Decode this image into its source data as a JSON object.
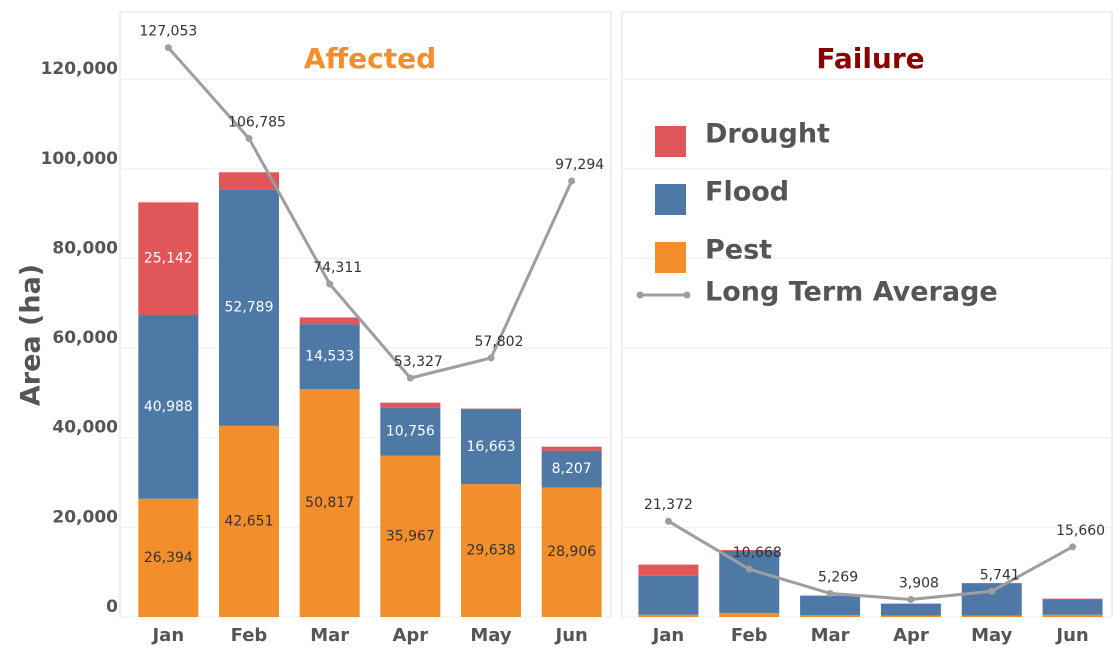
{
  "chart_data": [
    {
      "type": "stacked_bar_line",
      "title": "Affected",
      "title_color": "#f28e2b",
      "y_label": "Area (ha)",
      "categories": [
        "Jan",
        "Feb",
        "Mar",
        "Apr",
        "May",
        "Jun"
      ],
      "series": [
        {
          "name": "Pest",
          "color": "#f28e2b",
          "values": [
            26394,
            42651,
            50817,
            35967,
            29638,
            28906
          ],
          "value_labels": [
            "26,394",
            "42,651",
            "50,817",
            "35,967",
            "29,638",
            "28,906"
          ]
        },
        {
          "name": "Flood",
          "color": "#4e79a7",
          "values": [
            40988,
            52789,
            14533,
            10756,
            16663,
            8207
          ],
          "value_labels": [
            "40,988",
            "52,789",
            "14,533",
            "10,756",
            "16,663",
            "8,207"
          ]
        },
        {
          "name": "Drought",
          "color": "#e15759",
          "values": [
            25142,
            3800,
            1500,
            1100,
            200,
            900
          ],
          "value_labels": [
            "25,142",
            null,
            null,
            null,
            null,
            null
          ]
        }
      ],
      "line": {
        "name": "Long Term Average",
        "color": "#9e9e9e",
        "values": [
          127053,
          106785,
          74311,
          53327,
          57802,
          97294
        ],
        "value_labels": [
          "127,053",
          "106,785",
          "74,311",
          "53,327",
          "57,802",
          "97,294"
        ]
      },
      "ylim": [
        0,
        135000
      ],
      "yticks": [
        {
          "value": 0,
          "label": "0"
        },
        {
          "value": 20000,
          "label": "20,000"
        },
        {
          "value": 40000,
          "label": "40,000"
        },
        {
          "value": 60000,
          "label": "60,000"
        },
        {
          "value": 80000,
          "label": "80,000"
        },
        {
          "value": 100000,
          "label": "100,000"
        },
        {
          "value": 120000,
          "label": "120,000"
        }
      ],
      "grid": true
    },
    {
      "type": "stacked_bar_line",
      "title": "Failure",
      "title_color": "#8b0000",
      "categories": [
        "Jan",
        "Feb",
        "Mar",
        "Apr",
        "May",
        "Jun"
      ],
      "series": [
        {
          "name": "Pest",
          "color": "#f28e2b",
          "values": [
            500,
            900,
            400,
            300,
            300,
            500
          ]
        },
        {
          "name": "Flood",
          "color": "#4e79a7",
          "values": [
            8700,
            13850,
            4300,
            2600,
            7200,
            3400
          ]
        },
        {
          "name": "Drought",
          "color": "#e15759",
          "values": [
            2500,
            200,
            100,
            100,
            100,
            200
          ]
        }
      ],
      "line": {
        "name": "Long Term Average",
        "color": "#9e9e9e",
        "values": [
          21372,
          10668,
          5269,
          3908,
          5741,
          15660
        ],
        "value_labels": [
          "21,372",
          "10,668",
          "5,269",
          "3,908",
          "5,741",
          "15,660"
        ]
      },
      "ylim": [
        0,
        135000
      ],
      "grid": true,
      "legend": "upper left"
    }
  ]
}
